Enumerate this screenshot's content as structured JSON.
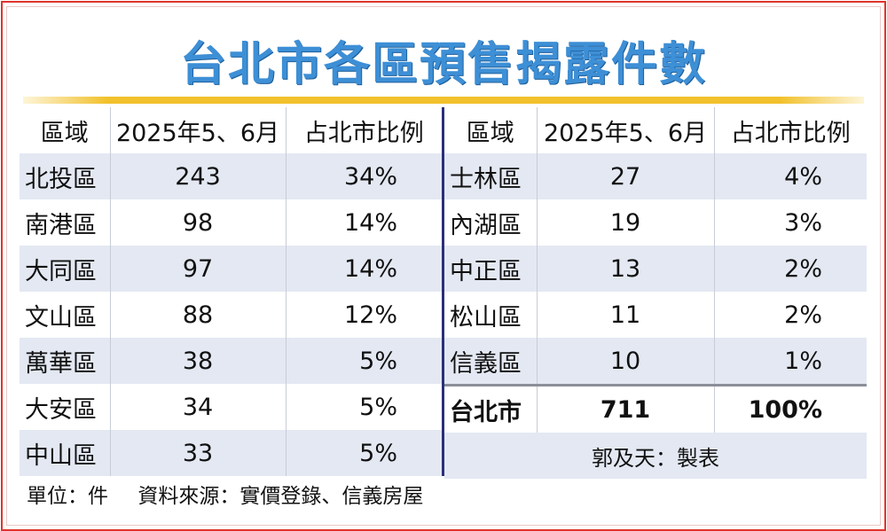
{
  "title": "台北市各區預售揭露件數",
  "headers": {
    "district": "區域",
    "count": "2025年5、6月",
    "share": "占北市比例"
  },
  "left_rows": [
    {
      "district": "北投區",
      "count": "243",
      "share": "34%"
    },
    {
      "district": "南港區",
      "count": "98",
      "share": "14%"
    },
    {
      "district": "大同區",
      "count": "97",
      "share": "14%"
    },
    {
      "district": "文山區",
      "count": "88",
      "share": "12%"
    },
    {
      "district": "萬華區",
      "count": "38",
      "share": "5%"
    },
    {
      "district": "大安區",
      "count": "34",
      "share": "5%"
    },
    {
      "district": "中山區",
      "count": "33",
      "share": "5%"
    }
  ],
  "right_rows": [
    {
      "district": "士林區",
      "count": "27",
      "share": "4%"
    },
    {
      "district": "內湖區",
      "count": "19",
      "share": "3%"
    },
    {
      "district": "中正區",
      "count": "13",
      "share": "2%"
    },
    {
      "district": "松山區",
      "count": "11",
      "share": "2%"
    },
    {
      "district": "信義區",
      "count": "10",
      "share": "1%"
    }
  ],
  "total": {
    "district": "台北市",
    "count": "711",
    "share": "100%"
  },
  "credit": "郭及天：製表",
  "footnote": {
    "unit": "單位：件",
    "source": "資料來源：實價登錄、信義房屋"
  },
  "colors": {
    "title": "#3d8fd6",
    "accent_rule": "#f2c12c",
    "row_stripe": "#e3e8f2",
    "frame": "#e0332c",
    "divider": "#2a2f7a"
  }
}
